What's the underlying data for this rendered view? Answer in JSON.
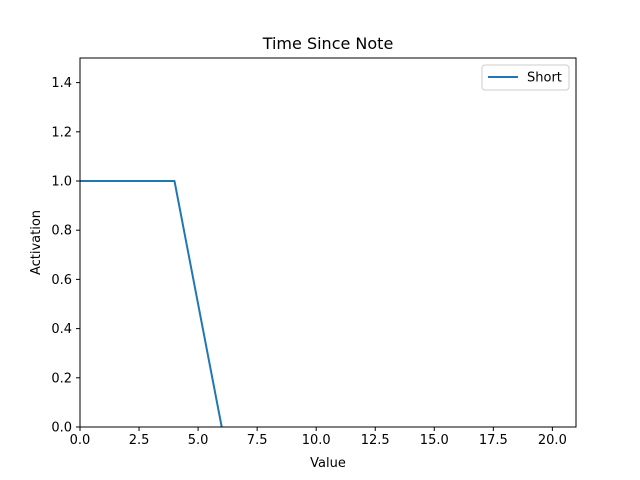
{
  "chart_data": {
    "type": "line",
    "title": "Time Since Note",
    "xlabel": "Value",
    "ylabel": "Activation",
    "xlim": [
      0,
      21
    ],
    "ylim": [
      0,
      1.5
    ],
    "xticks": [
      0,
      2.5,
      5,
      7.5,
      10,
      12.5,
      15,
      17.5,
      20
    ],
    "xtick_labels": [
      "0.0",
      "2.5",
      "5.0",
      "7.5",
      "10.0",
      "12.5",
      "15.0",
      "17.5",
      "20.0"
    ],
    "yticks": [
      0,
      0.2,
      0.4,
      0.6,
      0.8,
      1.0,
      1.2,
      1.4
    ],
    "ytick_labels": [
      "0.0",
      "0.2",
      "0.4",
      "0.6",
      "0.8",
      "1.0",
      "1.2",
      "1.4"
    ],
    "grid": false,
    "legend_position": "top-right",
    "series": [
      {
        "name": "Short",
        "color": "#1f77b4",
        "x": [
          0,
          4,
          6
        ],
        "y": [
          1.0,
          1.0,
          0.0
        ]
      }
    ]
  }
}
